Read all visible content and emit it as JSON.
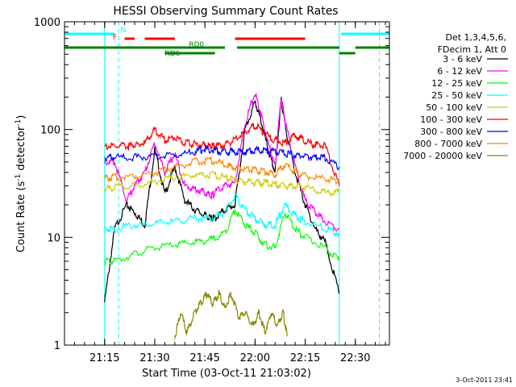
{
  "chart_data": {
    "type": "line",
    "title": "HESSI Observing Summary Count Rates",
    "xlabel": "Start Time (03-Oct-11 21:03:02)",
    "ylabel_main": "Count Rate (s",
    "ylabel_sup1": "-1",
    "ylabel_mid": " detector",
    "ylabel_sup2": "-1",
    "ylabel_end": ")",
    "y_scale": "log",
    "xlim": [
      21.05,
      22.67
    ],
    "ylim": [
      1,
      1000
    ],
    "x_ticks": [
      "21:15",
      "21:30",
      "21:45",
      "22:00",
      "22:15",
      "22:30"
    ],
    "x_tick_values": [
      21.25,
      21.5,
      21.75,
      22.0,
      22.25,
      22.5
    ],
    "y_ticks": [
      "1",
      "10",
      "100",
      "1000"
    ],
    "y_tick_values": [
      1,
      10,
      100,
      1000
    ],
    "legend_header": [
      "Det 1,3,4,5,6,",
      "FDecim 1, Att 0"
    ],
    "legend_placement": "right",
    "timestamp": "3-Oct-2011 23:41",
    "series": [
      {
        "name": "3 - 6 keV",
        "color": "#000000",
        "x": [
          21.25,
          21.3,
          21.36,
          21.4,
          21.45,
          21.5,
          21.55,
          21.6,
          21.65,
          21.7,
          21.75,
          21.78,
          21.8,
          21.85,
          21.9,
          21.95,
          22.0,
          22.03,
          22.07,
          22.1,
          22.13,
          22.15,
          22.2,
          22.25,
          22.3,
          22.35,
          22.42
        ],
        "y": [
          2.5,
          12,
          20,
          17,
          13,
          65,
          25,
          45,
          22,
          18,
          16,
          15,
          15,
          18,
          20,
          100,
          180,
          120,
          60,
          40,
          190,
          110,
          40,
          20,
          12,
          9,
          3
        ]
      },
      {
        "name": "6 - 12 keV",
        "color": "#ff00ff",
        "x": [
          21.25,
          21.3,
          21.36,
          21.4,
          21.45,
          21.5,
          21.55,
          21.6,
          21.65,
          21.7,
          21.75,
          21.78,
          21.8,
          21.85,
          21.9,
          21.95,
          22.0,
          22.03,
          22.07,
          22.1,
          22.13,
          22.15,
          22.2,
          22.25,
          22.3,
          22.35,
          22.42
        ],
        "y": [
          50,
          50,
          22,
          30,
          40,
          75,
          40,
          60,
          30,
          28,
          26,
          24,
          26,
          30,
          32,
          115,
          220,
          135,
          70,
          45,
          200,
          120,
          45,
          22,
          17,
          14,
          12
        ]
      },
      {
        "name": "12 - 25 keV",
        "color": "#00ff00",
        "x": [
          21.25,
          21.3,
          21.4,
          21.5,
          21.6,
          21.7,
          21.78,
          21.85,
          21.9,
          21.95,
          22.0,
          22.05,
          22.1,
          22.15,
          22.2,
          22.25,
          22.35,
          22.42
        ],
        "y": [
          6,
          6,
          7,
          8,
          8.5,
          9,
          9.5,
          11,
          18,
          13,
          11,
          8.5,
          8,
          17,
          12,
          10,
          8,
          6
        ]
      },
      {
        "name": "25 - 50 keV",
        "color": "#00ffff",
        "x": [
          21.25,
          21.3,
          21.4,
          21.5,
          21.6,
          21.7,
          21.78,
          21.85,
          21.9,
          21.95,
          22.0,
          22.05,
          22.1,
          22.15,
          22.2,
          22.25,
          22.35,
          22.42
        ],
        "y": [
          12,
          12,
          13,
          13.5,
          14,
          15,
          15,
          17,
          24,
          18,
          15,
          13,
          13,
          20,
          16,
          14,
          12,
          11
        ]
      },
      {
        "name": "50 - 100 keV",
        "color": "#cccc00",
        "x": [
          21.25,
          21.3,
          21.4,
          21.5,
          21.6,
          21.7,
          21.78,
          21.85,
          21.9,
          21.95,
          22.0,
          22.05,
          22.1,
          22.15,
          22.2,
          22.25,
          22.35,
          22.42
        ],
        "y": [
          28,
          29,
          30,
          33,
          36,
          38,
          38,
          36,
          34,
          33,
          32,
          32,
          31,
          30,
          30,
          29,
          26,
          26
        ]
      },
      {
        "name": "100 - 300 keV",
        "color": "#ff0000",
        "x": [
          21.25,
          21.3,
          21.36,
          21.4,
          21.45,
          21.5,
          21.55,
          21.6,
          21.65,
          21.7,
          21.75,
          21.78,
          21.8,
          21.85,
          21.9,
          21.95,
          22.0,
          22.05,
          22.1,
          22.15,
          22.2,
          22.25,
          22.3,
          22.35,
          22.42
        ],
        "y": [
          70,
          70,
          70,
          72,
          75,
          100,
          80,
          85,
          75,
          73,
          72,
          70,
          70,
          72,
          80,
          95,
          110,
          90,
          80,
          75,
          90,
          78,
          72,
          70,
          30
        ]
      },
      {
        "name": "300 - 800 keV",
        "color": "#0000ff",
        "x": [
          21.25,
          21.3,
          21.4,
          21.5,
          21.6,
          21.7,
          21.75,
          21.8,
          21.85,
          21.9,
          21.95,
          22.0,
          22.05,
          22.1,
          22.15,
          22.2,
          22.25,
          22.3,
          22.35,
          22.42
        ],
        "y": [
          55,
          55,
          55,
          56,
          58,
          62,
          66,
          64,
          62,
          62,
          62,
          65,
          64,
          62,
          60,
          58,
          57,
          55,
          55,
          45
        ]
      },
      {
        "name": "800 - 7000 keV",
        "color": "#ff8800",
        "x": [
          21.25,
          21.3,
          21.4,
          21.5,
          21.6,
          21.7,
          21.78,
          21.85,
          21.9,
          21.95,
          22.0,
          22.05,
          22.1,
          22.15,
          22.2,
          22.25,
          22.35,
          22.42
        ],
        "y": [
          35,
          36,
          37,
          40,
          45,
          50,
          52,
          47,
          44,
          43,
          42,
          41,
          38,
          48,
          40,
          37,
          35,
          33
        ]
      },
      {
        "name": "7000 - 20000 keV",
        "color": "#888800",
        "x": [
          21.6,
          21.63,
          21.66,
          21.7,
          21.73,
          21.76,
          21.79,
          21.82,
          21.85,
          21.88,
          21.92,
          21.95,
          21.99,
          22.02,
          22.05,
          22.08,
          22.11,
          22.14,
          22.16
        ],
        "y": [
          1.2,
          2,
          1.3,
          2,
          2.5,
          3,
          2.4,
          3,
          2.2,
          3,
          1.8,
          2,
          1.5,
          2,
          1.3,
          2,
          1.5,
          2,
          1.2
        ]
      }
    ],
    "flags": [
      {
        "label": "N",
        "color": "#00ffff",
        "segments": [
          [
            21.05,
            21.3
          ],
          [
            22.43,
            22.67
          ]
        ],
        "row": "top"
      },
      {
        "label": "F",
        "color": "#ff0000",
        "segments": [
          [
            21.35,
            21.4
          ],
          [
            21.45,
            21.6
          ],
          [
            21.9,
            22.25
          ]
        ],
        "row": "upper"
      },
      {
        "label": "RD0",
        "color": "#008000",
        "segments": [
          [
            21.05,
            21.85
          ],
          [
            21.91,
            22.42
          ],
          [
            22.5,
            22.67
          ]
        ],
        "row": "middle"
      },
      {
        "label": "RD6",
        "color": "#008000",
        "segments": [
          [
            21.55,
            21.8
          ],
          [
            22.42,
            22.5
          ]
        ],
        "row": "lower"
      }
    ],
    "grid": false
  }
}
